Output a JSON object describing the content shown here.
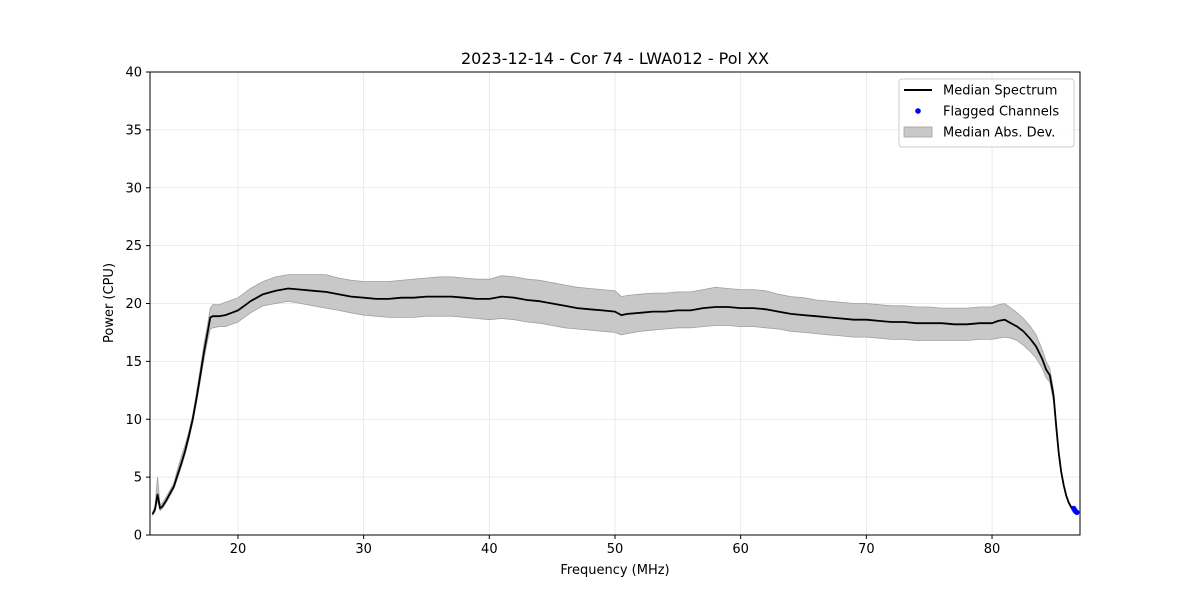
{
  "chart_data": {
    "type": "line",
    "title": "2023-12-14 - Cor 74 - LWA012 - Pol XX",
    "xlabel": "Frequency (MHz)",
    "ylabel": "Power (CPU)",
    "xlim": [
      13,
      87
    ],
    "ylim": [
      0,
      40
    ],
    "xticks": [
      20,
      30,
      40,
      50,
      60,
      70,
      80
    ],
    "yticks": [
      0,
      5,
      10,
      15,
      20,
      25,
      30,
      35,
      40
    ],
    "grid": true,
    "legend_position": "top-right",
    "series": [
      {
        "name": "Median Spectrum",
        "kind": "line",
        "color": "#000000",
        "x": [
          13.2,
          13.4,
          13.6,
          13.8,
          14.0,
          14.3,
          14.6,
          14.9,
          15.2,
          15.5,
          15.8,
          16.1,
          16.4,
          16.7,
          17.0,
          17.3,
          17.6,
          17.8,
          18.0,
          18.5,
          19.0,
          19.5,
          20.0,
          20.5,
          21.0,
          21.5,
          22.0,
          23.0,
          24.0,
          25.0,
          26.0,
          27.0,
          28.0,
          29.0,
          30.0,
          31.0,
          32.0,
          33.0,
          34.0,
          35.0,
          36.0,
          37.0,
          38.0,
          39.0,
          40.0,
          41.0,
          42.0,
          43.0,
          44.0,
          45.0,
          46.0,
          47.0,
          48.0,
          49.0,
          50.0,
          50.5,
          51.0,
          52.0,
          53.0,
          54.0,
          55.0,
          56.0,
          57.0,
          58.0,
          59.0,
          60.0,
          61.0,
          62.0,
          63.0,
          64.0,
          65.0,
          66.0,
          67.0,
          68.0,
          69.0,
          70.0,
          71.0,
          72.0,
          73.0,
          74.0,
          75.0,
          76.0,
          77.0,
          78.0,
          79.0,
          80.0,
          80.5,
          81.0,
          81.5,
          82.0,
          82.5,
          83.0,
          83.5,
          84.0,
          84.3,
          84.6,
          84.9,
          85.1,
          85.3,
          85.5,
          85.7,
          85.9,
          86.1,
          86.3,
          86.5,
          86.7
        ],
        "y": [
          1.8,
          2.2,
          3.5,
          2.3,
          2.5,
          3.0,
          3.6,
          4.2,
          5.2,
          6.2,
          7.3,
          8.6,
          10.0,
          11.8,
          13.8,
          15.8,
          17.6,
          18.8,
          18.9,
          18.9,
          19.0,
          19.2,
          19.4,
          19.8,
          20.2,
          20.5,
          20.8,
          21.1,
          21.3,
          21.2,
          21.1,
          21.0,
          20.8,
          20.6,
          20.5,
          20.4,
          20.4,
          20.5,
          20.5,
          20.6,
          20.6,
          20.6,
          20.5,
          20.4,
          20.4,
          20.6,
          20.5,
          20.3,
          20.2,
          20.0,
          19.8,
          19.6,
          19.5,
          19.4,
          19.3,
          19.0,
          19.1,
          19.2,
          19.3,
          19.3,
          19.4,
          19.4,
          19.6,
          19.7,
          19.7,
          19.6,
          19.6,
          19.5,
          19.3,
          19.1,
          19.0,
          18.9,
          18.8,
          18.7,
          18.6,
          18.6,
          18.5,
          18.4,
          18.4,
          18.3,
          18.3,
          18.3,
          18.2,
          18.2,
          18.3,
          18.3,
          18.5,
          18.6,
          18.3,
          18.0,
          17.6,
          17.0,
          16.3,
          15.2,
          14.3,
          13.8,
          12.0,
          9.5,
          7.2,
          5.5,
          4.3,
          3.4,
          2.8,
          2.4,
          2.1,
          2.0
        ]
      },
      {
        "name": "Flagged Channels",
        "kind": "scatter",
        "color": "#0000ff",
        "x": [
          86.5,
          86.55,
          86.6,
          86.65,
          86.7,
          86.75
        ],
        "y": [
          2.3,
          2.2,
          2.1,
          2.05,
          2.0,
          1.95
        ]
      },
      {
        "name": "Median Abs. Dev.",
        "kind": "band",
        "color": "#c8c8c8",
        "edge_color": "#a0a0a0",
        "x": [
          13.2,
          13.4,
          13.6,
          13.8,
          14.0,
          14.3,
          14.6,
          14.9,
          15.2,
          15.5,
          15.8,
          16.1,
          16.4,
          16.7,
          17.0,
          17.3,
          17.6,
          17.8,
          18.0,
          18.5,
          19.0,
          19.5,
          20.0,
          20.5,
          21.0,
          21.5,
          22.0,
          23.0,
          24.0,
          25.0,
          26.0,
          27.0,
          28.0,
          29.0,
          30.0,
          31.0,
          32.0,
          33.0,
          34.0,
          35.0,
          36.0,
          37.0,
          38.0,
          39.0,
          40.0,
          41.0,
          42.0,
          43.0,
          44.0,
          45.0,
          46.0,
          47.0,
          48.0,
          49.0,
          50.0,
          50.5,
          51.0,
          52.0,
          53.0,
          54.0,
          55.0,
          56.0,
          57.0,
          58.0,
          59.0,
          60.0,
          61.0,
          62.0,
          63.0,
          64.0,
          65.0,
          66.0,
          67.0,
          68.0,
          69.0,
          70.0,
          71.0,
          72.0,
          73.0,
          74.0,
          75.0,
          76.0,
          77.0,
          78.0,
          79.0,
          80.0,
          80.5,
          81.0,
          81.5,
          82.0,
          82.5,
          83.0,
          83.5,
          84.0,
          84.3,
          84.6,
          84.9,
          85.1,
          85.3,
          85.5,
          85.7,
          85.9,
          86.1,
          86.3,
          86.5,
          86.7
        ],
        "lower": [
          1.7,
          2.0,
          3.0,
          2.1,
          2.3,
          2.8,
          3.4,
          4.0,
          4.9,
          5.9,
          7.0,
          8.3,
          9.7,
          11.4,
          13.3,
          15.2,
          16.9,
          17.8,
          17.9,
          18.0,
          18.0,
          18.2,
          18.4,
          18.8,
          19.2,
          19.5,
          19.8,
          20.0,
          20.2,
          20.0,
          19.8,
          19.6,
          19.4,
          19.2,
          19.0,
          18.9,
          18.8,
          18.8,
          18.8,
          18.9,
          18.9,
          18.9,
          18.8,
          18.7,
          18.6,
          18.7,
          18.6,
          18.4,
          18.3,
          18.1,
          17.9,
          17.8,
          17.7,
          17.6,
          17.5,
          17.3,
          17.4,
          17.6,
          17.7,
          17.8,
          17.9,
          17.9,
          18.0,
          18.1,
          18.1,
          18.0,
          18.0,
          17.9,
          17.8,
          17.6,
          17.5,
          17.4,
          17.3,
          17.2,
          17.1,
          17.1,
          17.0,
          16.9,
          16.9,
          16.8,
          16.8,
          16.8,
          16.8,
          16.8,
          16.9,
          16.9,
          17.0,
          17.1,
          17.0,
          16.8,
          16.4,
          15.9,
          15.3,
          14.4,
          13.6,
          13.2,
          11.5,
          9.1,
          6.9,
          5.3,
          4.2,
          3.3,
          2.7,
          2.3,
          2.0,
          1.9
        ],
        "upper": [
          1.9,
          2.5,
          5.0,
          2.6,
          2.8,
          3.3,
          3.9,
          4.5,
          5.7,
          6.8,
          7.8,
          9.0,
          10.4,
          12.3,
          14.4,
          16.5,
          18.3,
          19.6,
          19.9,
          19.9,
          20.1,
          20.3,
          20.5,
          20.9,
          21.3,
          21.6,
          21.9,
          22.3,
          22.5,
          22.5,
          22.5,
          22.5,
          22.2,
          22.0,
          21.9,
          21.9,
          21.9,
          22.0,
          22.1,
          22.2,
          22.3,
          22.3,
          22.2,
          22.1,
          22.1,
          22.4,
          22.3,
          22.1,
          22.0,
          21.8,
          21.6,
          21.4,
          21.3,
          21.2,
          21.1,
          20.6,
          20.7,
          20.8,
          20.9,
          20.9,
          21.0,
          21.0,
          21.2,
          21.4,
          21.3,
          21.2,
          21.2,
          21.1,
          20.8,
          20.6,
          20.5,
          20.3,
          20.2,
          20.1,
          20.0,
          20.0,
          19.9,
          19.8,
          19.8,
          19.7,
          19.7,
          19.6,
          19.6,
          19.6,
          19.7,
          19.7,
          19.9,
          20.0,
          19.6,
          19.2,
          18.7,
          18.1,
          17.3,
          16.0,
          15.0,
          14.4,
          12.5,
          9.9,
          7.5,
          5.7,
          4.4,
          3.5,
          2.9,
          2.5,
          2.2,
          2.1
        ]
      }
    ],
    "legend": [
      {
        "label": "Median Spectrum",
        "marker": "line"
      },
      {
        "label": "Flagged Channels",
        "marker": "dot"
      },
      {
        "label": "Median Abs. Dev.",
        "marker": "patch"
      }
    ]
  }
}
